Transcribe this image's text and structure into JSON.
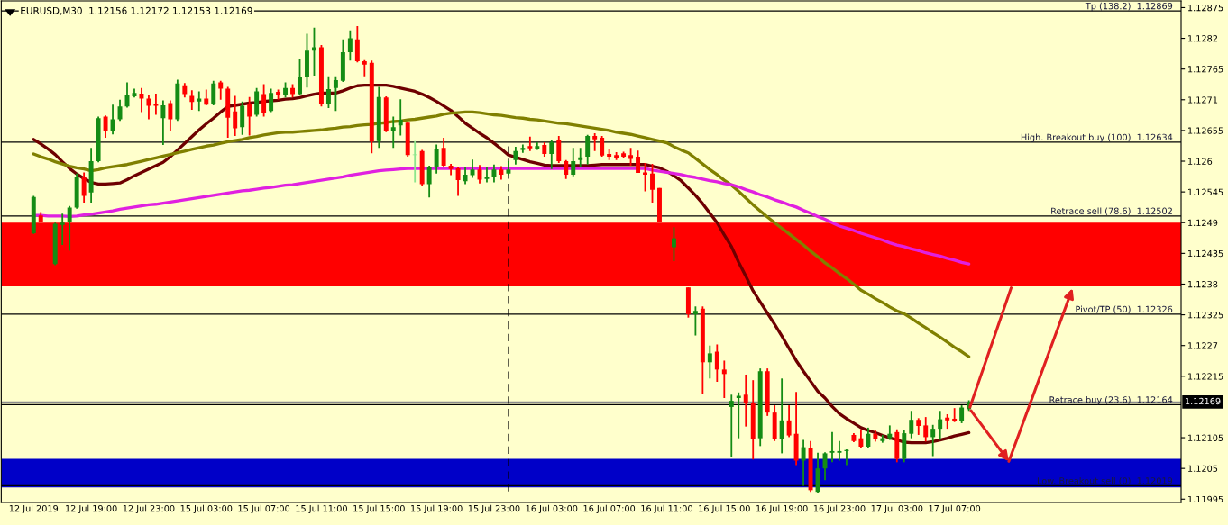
{
  "chart_data": {
    "type": "candlestick",
    "title": "EURUSD,M30  1.12156 1.12172 1.12153 1.12169",
    "categories": [
      "12 Jul 2019",
      null,
      null,
      null,
      null,
      null,
      null,
      null,
      "12 Jul 19:00",
      null,
      null,
      null,
      null,
      null,
      null,
      null,
      "12 Jul 23:00",
      null,
      null,
      null,
      null,
      null,
      null,
      null,
      "15 Jul 03:00",
      null,
      null,
      null,
      null,
      null,
      null,
      null,
      "15 Jul 07:00",
      null,
      null,
      null,
      null,
      null,
      null,
      null,
      "15 Jul 11:00",
      null,
      null,
      null,
      null,
      null,
      null,
      null,
      "15 Jul 15:00",
      null,
      null,
      null,
      null,
      null,
      null,
      null,
      "15 Jul 19:00",
      null,
      null,
      null,
      null,
      null,
      null,
      null,
      "15 Jul 23:00",
      null,
      null,
      null,
      null,
      null,
      null,
      null,
      "16 Jul 03:00",
      null,
      null,
      null,
      null,
      null,
      null,
      null,
      "16 Jul 07:00",
      null,
      null,
      null,
      null,
      null,
      null,
      null,
      "16 Jul 11:00",
      null,
      null,
      null,
      null,
      null,
      null,
      null,
      "16 Jul 15:00",
      null,
      null,
      null,
      null,
      null,
      null,
      null,
      "16 Jul 19:00",
      null,
      null,
      null,
      null,
      null,
      null,
      null,
      "16 Jul 23:00",
      null,
      null,
      null,
      null,
      null,
      null,
      null,
      "17 Jul 03:00",
      null,
      null,
      null,
      null,
      null,
      null,
      null,
      "17 Jul 07:00",
      null,
      null
    ],
    "ylim": [
      1.11989,
      1.12887
    ],
    "yticks": [
      1.11995,
      1.1205,
      1.12105,
      1.12215,
      1.1227,
      1.12325,
      1.1238,
      1.12435,
      1.1249,
      1.12545,
      1.126,
      1.12655,
      1.1271,
      1.12765,
      1.1282,
      1.12875
    ],
    "grid": false,
    "ohlc": [
      [
        1.12471,
        1.12538,
        1.1247,
        1.12536
      ],
      [
        1.12503,
        1.12509,
        1.12491,
        1.12491
      ],
      null,
      [
        1.12416,
        1.1249,
        1.12414,
        1.12488
      ],
      [
        1.12486,
        1.12506,
        1.1245,
        1.1249
      ],
      [
        1.12492,
        1.1252,
        1.1244,
        1.12517
      ],
      [
        1.12517,
        1.12578,
        1.12515,
        1.12572
      ],
      [
        1.12572,
        1.1258,
        1.12526,
        1.12538
      ],
      [
        1.12544,
        1.12624,
        1.12526,
        1.126
      ],
      [
        1.126,
        1.1268,
        1.12598,
        1.12677
      ],
      [
        1.1268,
        1.12682,
        1.12642,
        1.12654
      ],
      [
        1.12654,
        1.12701,
        1.12648,
        1.12675
      ],
      [
        1.12675,
        1.1271,
        1.12672,
        1.12698
      ],
      [
        1.12698,
        1.12741,
        1.12696,
        1.12719
      ],
      [
        1.12716,
        1.1273,
        1.12714,
        1.12722
      ],
      [
        1.12721,
        1.12731,
        1.12688,
        1.12712
      ],
      [
        1.12712,
        1.12718,
        1.12675,
        1.12699
      ],
      [
        1.12703,
        1.12721,
        1.12683,
        1.12699
      ],
      [
        1.12677,
        1.12709,
        1.12629,
        1.127
      ],
      [
        1.12704,
        1.12709,
        1.12654,
        1.12675
      ],
      [
        1.12675,
        1.12746,
        1.12672,
        1.12739
      ],
      [
        1.12736,
        1.1274,
        1.12714,
        1.1272
      ],
      [
        1.12717,
        1.12727,
        1.12692,
        1.12706
      ],
      [
        1.12707,
        1.12725,
        1.1269,
        1.12712
      ],
      [
        1.12712,
        1.12728,
        1.127,
        1.12701
      ],
      [
        1.12703,
        1.12744,
        1.127,
        1.12739
      ],
      [
        1.12741,
        1.12744,
        1.1271,
        1.1273
      ],
      [
        1.1273,
        1.12733,
        1.12642,
        1.12678
      ],
      [
        1.12689,
        1.12717,
        1.12645,
        1.12659
      ],
      [
        1.12661,
        1.12707,
        1.12647,
        1.12699
      ],
      [
        1.12703,
        1.12715,
        1.12646,
        1.1268
      ],
      [
        1.12683,
        1.12731,
        1.1268,
        1.12725
      ],
      [
        1.1272,
        1.12738,
        1.1268,
        1.12686
      ],
      [
        1.1269,
        1.1273,
        1.12688,
        1.12722
      ],
      [
        1.12724,
        1.12728,
        1.1271,
        1.12718
      ],
      [
        1.12719,
        1.12741,
        1.12714,
        1.12731
      ],
      [
        1.12731,
        1.12738,
        1.12714,
        1.1272
      ],
      [
        1.1272,
        1.12783,
        1.12718,
        1.12751
      ],
      [
        1.12751,
        1.12828,
        1.12732,
        1.12798
      ],
      [
        1.12798,
        1.12839,
        1.12753,
        1.12804
      ],
      [
        1.12804,
        1.12808,
        1.12698,
        1.12703
      ],
      [
        1.12703,
        1.12752,
        1.12695,
        1.12729
      ],
      [
        1.12731,
        1.12752,
        1.1269,
        1.12745
      ],
      [
        1.12744,
        1.12818,
        1.12742,
        1.12795
      ],
      [
        1.12795,
        1.12834,
        1.1278,
        1.1282
      ],
      [
        1.12818,
        1.12842,
        1.12777,
        1.12779
      ],
      [
        1.12779,
        1.12781,
        1.12752,
        1.12773
      ],
      [
        1.12776,
        1.1278,
        1.12614,
        1.12635
      ],
      [
        1.12636,
        1.12733,
        1.12624,
        1.12715
      ],
      [
        1.12714,
        1.12716,
        1.12652,
        1.12655
      ],
      [
        1.12655,
        1.1268,
        1.12624,
        1.12661
      ],
      [
        1.12664,
        1.12711,
        1.12646,
        1.12674
      ],
      [
        1.12669,
        1.12671,
        1.12608,
        1.12611
      ],
      [
        1.12611,
        1.12636,
        1.12562,
        1.12612
      ],
      [
        1.12618,
        1.1262,
        1.12555,
        1.12559
      ],
      [
        1.12559,
        1.12592,
        1.12535,
        1.1259
      ],
      [
        1.1259,
        1.1263,
        1.12578,
        1.12621
      ],
      [
        1.12624,
        1.12642,
        1.12589,
        1.12592
      ],
      [
        1.12592,
        1.12595,
        1.12575,
        1.12586
      ],
      [
        1.12587,
        1.1259,
        1.12538,
        1.12566
      ],
      [
        1.12564,
        1.1259,
        1.12559,
        1.12576
      ],
      [
        1.12575,
        1.12603,
        1.1257,
        1.12585
      ],
      [
        1.12585,
        1.12593,
        1.1256,
        1.12567
      ],
      [
        1.12568,
        1.12589,
        1.12562,
        1.12571
      ],
      [
        1.12572,
        1.12594,
        1.12562,
        1.12585
      ],
      [
        1.12585,
        1.12591,
        1.12567,
        1.12576
      ],
      [
        1.12578,
        1.126,
        1.12575,
        1.12585
      ],
      [
        1.12602,
        1.12626,
        1.12594,
        1.12618
      ],
      [
        1.1262,
        1.1263,
        1.12615,
        1.12624
      ],
      [
        1.12627,
        1.12644,
        1.12618,
        1.12623
      ],
      [
        1.12622,
        1.12634,
        1.1262,
        1.12627
      ],
      [
        1.12629,
        1.12634,
        1.12608,
        1.12613
      ],
      [
        1.12613,
        1.12637,
        1.12586,
        1.12634
      ],
      [
        1.12637,
        1.12645,
        1.12597,
        1.126
      ],
      [
        1.126,
        1.12602,
        1.12568,
        1.12576
      ],
      [
        1.12576,
        1.12624,
        1.12573,
        1.126
      ],
      [
        1.12602,
        1.12624,
        1.12589,
        1.12607
      ],
      [
        1.12608,
        1.12647,
        1.12594,
        1.12645
      ],
      [
        1.12645,
        1.1265,
        1.12618,
        1.12639
      ],
      [
        1.12642,
        1.12645,
        1.12608,
        1.1261
      ],
      [
        1.12613,
        1.12621,
        1.12602,
        1.12608
      ],
      [
        1.12611,
        1.12616,
        1.12602,
        1.12606
      ],
      [
        1.12614,
        1.12617,
        1.12605,
        1.12608
      ],
      [
        1.12611,
        1.12624,
        1.12592,
        1.12604
      ],
      [
        1.12608,
        1.12619,
        1.12579,
        1.12579
      ],
      [
        1.1258,
        1.12597,
        1.12546,
        1.12576
      ],
      [
        1.12578,
        1.12595,
        1.12526,
        1.12549
      ],
      [
        1.12552,
        1.12552,
        1.12491,
        1.12491
      ],
      null,
      [
        1.12446,
        1.12482,
        1.12421,
        1.12462
      ],
      null,
      [
        1.12374,
        1.12374,
        1.1232,
        1.12326
      ],
      [
        1.12326,
        1.1234,
        1.12288,
        1.12332
      ],
      [
        1.12336,
        1.1234,
        1.12184,
        1.1224
      ],
      [
        1.1224,
        1.1227,
        1.12211,
        1.12256
      ],
      [
        1.12259,
        1.12272,
        1.12205,
        1.12227
      ],
      [
        1.12227,
        1.12243,
        1.12176,
        1.12219
      ],
      [
        1.1216,
        1.12182,
        1.12071,
        1.12171
      ],
      [
        1.12176,
        1.12186,
        1.12104,
        1.1218
      ],
      [
        1.12182,
        1.12218,
        1.12125,
        1.12168
      ],
      [
        1.12168,
        1.12208,
        1.12066,
        1.12102
      ],
      [
        1.12104,
        1.12229,
        1.1209,
        1.12224
      ],
      [
        1.12224,
        1.12229,
        1.12144,
        1.1215
      ],
      [
        1.1215,
        1.12163,
        1.12099,
        1.12102
      ],
      [
        1.12102,
        1.12211,
        1.12077,
        1.12136
      ],
      [
        1.12136,
        1.12163,
        1.12106,
        1.12109
      ],
      [
        1.12112,
        1.12187,
        1.12056,
        1.12064
      ],
      [
        1.12064,
        1.12101,
        1.12019,
        1.12088
      ],
      [
        1.12086,
        1.12099,
        1.12008,
        1.12011
      ],
      [
        1.12008,
        1.12078,
        1.12006,
        1.1205
      ],
      [
        1.1205,
        1.12079,
        1.12029,
        1.12077
      ],
      [
        1.12078,
        1.12115,
        1.12061,
        1.12081
      ],
      [
        1.12078,
        1.12099,
        1.12064,
        1.12081
      ],
      [
        1.12081,
        1.12084,
        1.12056,
        1.12083
      ],
      [
        1.1211,
        1.12113,
        1.12097,
        1.12099
      ],
      [
        1.12104,
        1.1212,
        1.12086,
        1.12089
      ],
      [
        1.12089,
        1.12123,
        1.12087,
        1.12112
      ],
      [
        1.12112,
        1.12119,
        1.12098,
        1.12102
      ],
      [
        1.12099,
        1.1211,
        1.12096,
        1.12104
      ],
      [
        1.12104,
        1.12127,
        1.12101,
        1.12112
      ],
      [
        1.12115,
        1.1212,
        1.12061,
        1.12067
      ],
      [
        1.12067,
        1.12118,
        1.12061,
        1.12113
      ],
      [
        1.12112,
        1.12153,
        1.12104,
        1.12137
      ],
      [
        1.12137,
        1.1214,
        1.1211,
        1.12126
      ],
      [
        1.12127,
        1.12142,
        1.12098,
        1.12106
      ],
      [
        1.12106,
        1.12128,
        1.12072,
        1.12121
      ],
      [
        1.12121,
        1.12153,
        1.12101,
        1.12138
      ],
      [
        1.12141,
        1.12147,
        1.12121,
        1.12136
      ],
      [
        1.12139,
        1.12158,
        1.12133,
        1.12135
      ],
      [
        1.12135,
        1.12163,
        1.12131,
        1.12159
      ],
      [
        1.12156,
        1.12172,
        1.12153,
        1.12169
      ]
    ],
    "colors": [
      "#148c14",
      "#ff0000",
      "#ff0000",
      "#148c14",
      "#148c14",
      "#148c14",
      "#148c14",
      "#ff0000",
      "#148c14",
      "#148c14",
      "#ff0000",
      "#148c14",
      "#148c14",
      "#148c14",
      "#148c14",
      "#ff0000",
      "#ff0000",
      "#ff0000",
      "#148c14",
      "#ff0000",
      "#148c14",
      "#ff0000",
      "#ff0000",
      "#148c14",
      "#ff0000",
      "#148c14",
      "#ff0000",
      "#ff0000",
      "#ff0000",
      "#148c14",
      "#ff0000",
      "#148c14",
      "#ff0000",
      "#148c14",
      "#ff0000",
      "#148c14",
      "#ff0000",
      "#148c14",
      "#148c14",
      "#148c14",
      "#ff0000",
      "#148c14",
      "#148c14",
      "#148c14",
      "#148c14",
      "#ff0000",
      "#ff0000",
      "#ff0000",
      "#148c14",
      "#ff0000",
      "#148c14",
      "#148c14",
      "#ff0000",
      "#8ce68c",
      "#ff0000",
      "#148c14",
      "#148c14",
      "#ff0000",
      "#ff0000",
      "#ff0000",
      "#148c14",
      "#148c14",
      "#ff0000",
      "#148c14",
      "#148c14",
      "#ff0000",
      "#148c14",
      "#148c14",
      "#148c14",
      "#ff0000",
      "#148c14",
      "#ff0000",
      "#148c14",
      "#ff0000",
      "#ff0000",
      "#148c14",
      "#148c14",
      "#148c14",
      "#ff0000",
      "#ff0000",
      "#ff0000",
      "#ff0000",
      "#ff0000",
      "#ff0000",
      "#ff0000",
      "#ff0000",
      "#ff0000",
      "#ff0000",
      "#ff0000",
      "#148c14",
      "#ff0000",
      "#ff0000",
      "#148c14",
      "#ff0000",
      "#148c14",
      "#ff0000",
      "#ff0000",
      "#148c14",
      "#148c14",
      "#ff0000",
      "#ff0000",
      "#148c14",
      "#ff0000",
      "#ff0000",
      "#148c14",
      "#ff0000",
      "#ff0000",
      "#148c14",
      "#ff0000",
      "#148c14",
      "#148c14",
      "#148c14",
      "#148c14",
      "#148c14",
      "#ff0000",
      "#ff0000",
      "#148c14",
      "#ff0000",
      "#148c14",
      "#148c14",
      "#ff0000",
      "#148c14",
      "#148c14",
      "#ff0000",
      "#ff0000",
      "#148c14",
      "#148c14",
      "#ff0000",
      "#ff0000",
      "#148c14",
      "#148c14"
    ],
    "series": [
      {
        "type": "line",
        "color": "#6e0000",
        "values": [
          1.12639,
          1.12631,
          1.12622,
          1.12612,
          1.12599,
          1.12587,
          1.12577,
          1.12569,
          1.12562,
          1.12559,
          1.12559,
          1.1256,
          1.12561,
          1.12567,
          1.12574,
          1.1258,
          1.12586,
          1.12592,
          1.12598,
          1.12608,
          1.1262,
          1.12632,
          1.12644,
          1.12656,
          1.12667,
          1.12677,
          1.12688,
          1.12698,
          1.127,
          1.12702,
          1.12704,
          1.12705,
          1.12707,
          1.12708,
          1.12709,
          1.12711,
          1.12712,
          1.12714,
          1.12717,
          1.1272,
          1.12722,
          1.12722,
          1.12722,
          1.12726,
          1.12731,
          1.12735,
          1.12736,
          1.12736,
          1.12736,
          1.12736,
          1.12734,
          1.12731,
          1.12728,
          1.12725,
          1.1272,
          1.12714,
          1.12707,
          1.12699,
          1.12691,
          1.1268,
          1.12668,
          1.12659,
          1.1265,
          1.12642,
          1.12632,
          1.12622,
          1.12611,
          1.12607,
          1.12603,
          1.12599,
          1.12596,
          1.12593,
          1.12592,
          1.12592,
          1.12592,
          1.12592,
          1.12592,
          1.12592,
          1.12593,
          1.12594,
          1.12594,
          1.12594,
          1.12594,
          1.12594,
          1.12594,
          1.12594,
          1.12591,
          1.12588,
          1.12582,
          1.12574,
          1.12565,
          1.12552,
          1.12539,
          1.12524,
          1.12507,
          1.1249,
          1.12468,
          1.12447,
          1.12419,
          1.12394,
          1.12368,
          1.12348,
          1.12328,
          1.12308,
          1.12287,
          1.12265,
          1.12243,
          1.12224,
          1.12206,
          1.12188,
          1.12176,
          1.12161,
          1.12148,
          1.12139,
          1.12131,
          1.12123,
          1.12118,
          1.12114,
          1.12109,
          1.12105,
          1.12101,
          1.12097,
          1.12096,
          1.12096,
          1.12096,
          1.12098,
          1.12101,
          1.12104,
          1.12108,
          1.12111,
          1.12114
        ]
      },
      {
        "type": "line",
        "color": "#808000",
        "values": [
          1.12613,
          1.12608,
          1.12604,
          1.12599,
          1.12595,
          1.12591,
          1.12588,
          1.12586,
          1.12583,
          1.12585,
          1.12588,
          1.1259,
          1.12592,
          1.12594,
          1.12597,
          1.126,
          1.12603,
          1.12606,
          1.12609,
          1.12612,
          1.12615,
          1.12618,
          1.12621,
          1.12624,
          1.12627,
          1.12629,
          1.12632,
          1.12635,
          1.12637,
          1.12639,
          1.12642,
          1.12644,
          1.12647,
          1.12649,
          1.12651,
          1.12652,
          1.12652,
          1.12653,
          1.12654,
          1.12655,
          1.12656,
          1.12658,
          1.12659,
          1.12661,
          1.12662,
          1.12664,
          1.12665,
          1.12666,
          1.12668,
          1.12669,
          1.12671,
          1.12672,
          1.12674,
          1.12675,
          1.12677,
          1.12679,
          1.12681,
          1.12684,
          1.12686,
          1.12687,
          1.12688,
          1.12688,
          1.12687,
          1.12685,
          1.12683,
          1.12682,
          1.1268,
          1.12678,
          1.12677,
          1.12675,
          1.12674,
          1.12672,
          1.1267,
          1.12668,
          1.12667,
          1.12665,
          1.12663,
          1.12661,
          1.12659,
          1.12657,
          1.12655,
          1.12652,
          1.1265,
          1.12648,
          1.12645,
          1.12642,
          1.12639,
          1.12636,
          1.12633,
          1.12626,
          1.1262,
          1.12615,
          1.12605,
          1.12595,
          1.12585,
          1.12576,
          1.12566,
          1.12557,
          1.12546,
          1.12534,
          1.12522,
          1.12511,
          1.125,
          1.1249,
          1.1248,
          1.1247,
          1.1246,
          1.1245,
          1.12439,
          1.12429,
          1.12418,
          1.12409,
          1.12399,
          1.1239,
          1.1238,
          1.12369,
          1.12362,
          1.12354,
          1.12347,
          1.12339,
          1.12332,
          1.12327,
          1.12319,
          1.1231,
          1.12302,
          1.12293,
          1.12285,
          1.12276,
          1.12267,
          1.12259,
          1.1225
        ]
      },
      {
        "type": "line",
        "color": "#e020e0",
        "values": [
          1.12503,
          1.12503,
          1.12502,
          1.12502,
          1.12502,
          1.12501,
          1.12502,
          1.12504,
          1.12505,
          1.12507,
          1.12509,
          1.12511,
          1.12514,
          1.12516,
          1.12518,
          1.1252,
          1.12522,
          1.12523,
          1.12525,
          1.12527,
          1.12529,
          1.12531,
          1.12533,
          1.12535,
          1.12537,
          1.12539,
          1.12541,
          1.12543,
          1.12545,
          1.12547,
          1.12548,
          1.1255,
          1.12552,
          1.12553,
          1.12555,
          1.12557,
          1.12558,
          1.1256,
          1.12562,
          1.12564,
          1.12566,
          1.12568,
          1.1257,
          1.12572,
          1.12575,
          1.12577,
          1.12579,
          1.12581,
          1.12583,
          1.12584,
          1.12585,
          1.12586,
          1.12587,
          1.12587,
          1.12587,
          1.12587,
          1.12587,
          1.12587,
          1.12587,
          1.12587,
          1.12587,
          1.12587,
          1.12587,
          1.12587,
          1.12587,
          1.12587,
          1.12587,
          1.12587,
          1.12587,
          1.12587,
          1.12587,
          1.12587,
          1.12587,
          1.12587,
          1.12587,
          1.12587,
          1.12587,
          1.12587,
          1.12587,
          1.12587,
          1.12587,
          1.12587,
          1.12587,
          1.12587,
          1.12587,
          1.12587,
          1.12584,
          1.12582,
          1.1258,
          1.12578,
          1.12576,
          1.12573,
          1.12571,
          1.12568,
          1.12565,
          1.12563,
          1.1256,
          1.12558,
          1.12554,
          1.12549,
          1.12545,
          1.1254,
          1.12536,
          1.12531,
          1.12527,
          1.12522,
          1.12518,
          1.12512,
          1.12507,
          1.12501,
          1.12496,
          1.1249,
          1.12484,
          1.1248,
          1.12476,
          1.12471,
          1.12467,
          1.12463,
          1.12459,
          1.12454,
          1.1245,
          1.12447,
          1.12443,
          1.1244,
          1.12436,
          1.12433,
          1.1243,
          1.12426,
          1.12423,
          1.12419,
          1.12416
        ]
      }
    ],
    "bands": [
      {
        "axis": "y",
        "from": 1.12376,
        "to": 1.1249,
        "color": "#ff0000"
      },
      {
        "axis": "y",
        "from": 1.12016,
        "to": 1.12067,
        "color": "#0000c8"
      }
    ],
    "ref_lines": [
      {
        "axis": "y",
        "value": 1.12869,
        "label": "Tp (138.2)  1.12869",
        "color": "#000000"
      },
      {
        "axis": "y",
        "value": 1.12634,
        "label": "High. Breakout buy (100)  1.12634",
        "color": "#000000"
      },
      {
        "axis": "y",
        "value": 1.12502,
        "label": "Retrace sell (78.6)  1.12502",
        "color": "#000000"
      },
      {
        "axis": "y",
        "value": 1.12326,
        "label": "Pivot/TP (50)  1.12326",
        "color": "#000000"
      },
      {
        "axis": "y",
        "value": 1.12164,
        "label": "Retrace buy (23.6)  1.12164",
        "color": "#000000"
      },
      {
        "axis": "y",
        "value": 1.12019,
        "label": "Low. Breakout sell (0)  1.12019",
        "color": "#000000"
      },
      {
        "axis": "y",
        "value": 1.12169,
        "color": "#8c8c8c"
      }
    ],
    "annotations": [
      "1.12169"
    ]
  }
}
